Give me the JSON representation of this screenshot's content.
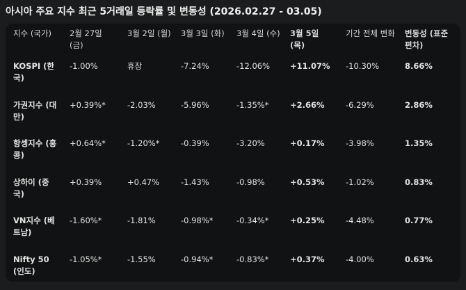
{
  "header": {
    "title": "아시아 주요 지수 최근 5거래일 등락률 및 변동성 (2026.02.27 - 03.05)"
  },
  "table": {
    "columns": [
      "지수 (국가)",
      "2월 27일 (금)",
      "3월 2일 (월)",
      "3월 3일 (화)",
      "3월 4일 (수)",
      "3월 5일 (목)",
      "기간 전체 변화",
      "변동성 (표준편차)"
    ],
    "rows": [
      [
        "KOSPI (한국)",
        "-1.00%",
        "휴장",
        "-7.24%",
        "-12.06%",
        "+11.07%",
        "-10.30%",
        "8.66%"
      ],
      [
        "가권지수 (대만)",
        "+0.39%*",
        "-2.03%",
        "-5.96%",
        "-1.35%*",
        "+2.66%",
        "-6.29%",
        "2.86%"
      ],
      [
        "항셍지수 (홍콩)",
        "+0.64%*",
        "-1.20%*",
        "-0.39%",
        "-3.20%",
        "+0.17%",
        "-3.98%",
        "1.35%"
      ],
      [
        "상하이 (중국)",
        "+0.39%",
        "+0.47%",
        "-1.43%",
        "-0.98%",
        "+0.53%",
        "-1.02%",
        "0.83%"
      ],
      [
        "VN지수 (베트남)",
        "-1.60%*",
        "-1.81%",
        "-0.98%*",
        "-0.34%*",
        "+0.25%",
        "-4.48%",
        "0.77%"
      ],
      [
        "Nifty 50 (인도)",
        "-1.05%*",
        "-1.55%",
        "-0.94%*",
        "-0.83%*",
        "+0.37%",
        "-4.00%",
        "0.63%"
      ]
    ]
  }
}
